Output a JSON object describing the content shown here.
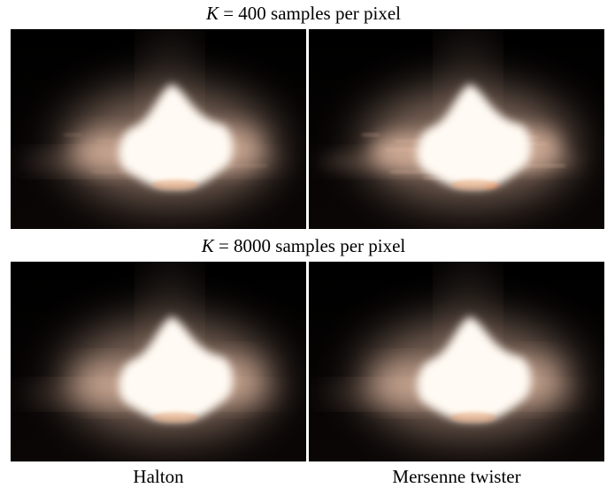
{
  "rows": [
    {
      "var": "K",
      "rest": " = 400 samples per pixel"
    },
    {
      "var": "K",
      "rest": " = 8000 samples per pixel"
    }
  ],
  "columns": [
    "Halton",
    "Mersenne twister"
  ],
  "colors": {
    "core": "#fffaf3",
    "halo": "#e8c0a8",
    "background": "#0a0605",
    "artifact": "#b03a10"
  }
}
